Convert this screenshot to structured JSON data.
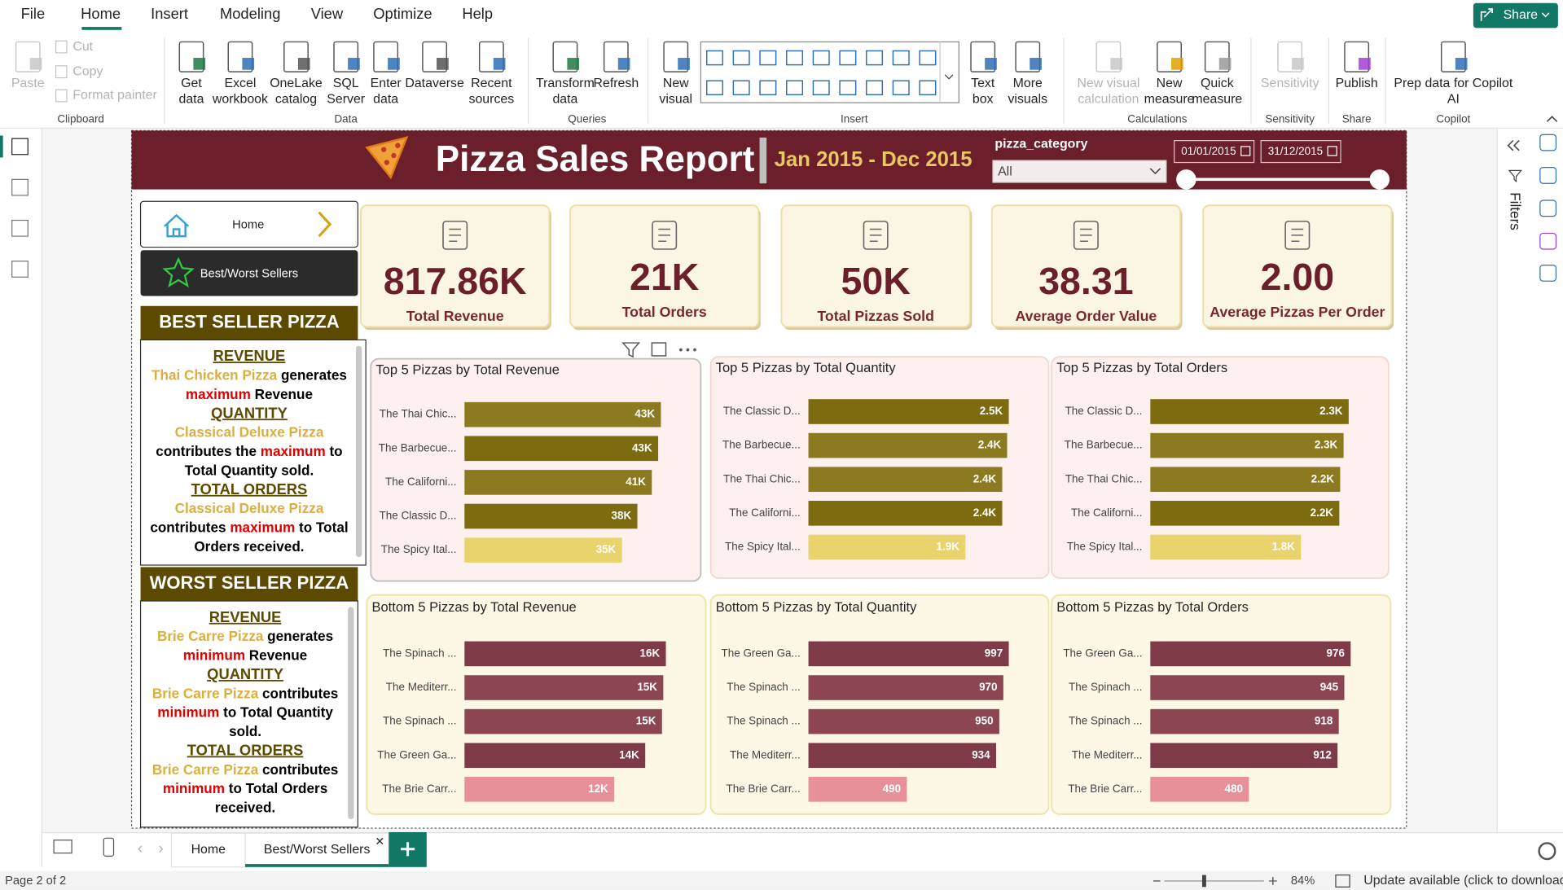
{
  "menu": {
    "tabs": [
      "File",
      "Home",
      "Insert",
      "Modeling",
      "View",
      "Optimize",
      "Help"
    ]
  },
  "share": "Share",
  "ribbon": {
    "groups": [
      {
        "label": "Clipboard",
        "buttons": [
          {
            "lines": [
              "Paste"
            ],
            "enabled": false
          },
          {
            "lines": [
              "Cut"
            ],
            "enabled": false
          },
          {
            "lines": [
              "Copy"
            ],
            "enabled": false
          },
          {
            "lines": [
              "Format painter"
            ],
            "enabled": false
          }
        ]
      },
      {
        "label": "Data",
        "buttons": [
          {
            "lines": [
              "Get",
              "data"
            ]
          },
          {
            "lines": [
              "Excel",
              "workbook"
            ]
          },
          {
            "lines": [
              "OneLake",
              "catalog"
            ]
          },
          {
            "lines": [
              "SQL",
              "Server"
            ]
          },
          {
            "lines": [
              "Enter",
              "data"
            ]
          },
          {
            "lines": [
              "Dataverse"
            ]
          },
          {
            "lines": [
              "Recent",
              "sources"
            ]
          }
        ]
      },
      {
        "label": "Queries",
        "buttons": [
          {
            "lines": [
              "Transform",
              "data"
            ]
          },
          {
            "lines": [
              "Refresh"
            ]
          }
        ]
      },
      {
        "label": "Insert",
        "buttons": [
          {
            "lines": [
              "New",
              "visual"
            ]
          },
          {
            "lines": [
              "Text",
              "box"
            ]
          },
          {
            "lines": [
              "More",
              "visuals"
            ]
          }
        ]
      },
      {
        "label": "Calculations",
        "buttons": [
          {
            "lines": [
              "New visual",
              "calculation"
            ],
            "enabled": false
          },
          {
            "lines": [
              "New",
              "measure"
            ]
          },
          {
            "lines": [
              "Quick",
              "measure"
            ]
          }
        ]
      },
      {
        "label": "Sensitivity",
        "buttons": [
          {
            "lines": [
              "Sensitivity"
            ],
            "enabled": false
          }
        ]
      },
      {
        "label": "Share",
        "buttons": [
          {
            "lines": [
              "Publish"
            ]
          }
        ]
      },
      {
        "label": "Copilot",
        "buttons": [
          {
            "lines": [
              "Prep data for Copilot",
              "AI"
            ]
          }
        ]
      }
    ]
  },
  "filters_pane": "Filters",
  "report": {
    "title": "Pizza Sales Report",
    "period": "Jan 2015 - Dec 2015",
    "slicer": {
      "label": "pizza_category",
      "value": "All"
    },
    "dates": [
      "01/01/2015",
      "31/12/2015"
    ],
    "nav": [
      "Home",
      "Best/Worst Sellers"
    ],
    "best": {
      "title": "BEST SELLER PIZZA",
      "lines": [
        [
          {
            "text": "REVENUE",
            "color": "#5c4a00",
            "underline": true
          }
        ],
        [
          {
            "text": "Thai Chicken Pizza",
            "color": "#dcae3c"
          },
          {
            "text": " generates",
            "color": "#000000"
          }
        ],
        [
          {
            "text": "maximum",
            "color": "#e00000"
          },
          {
            "text": " Revenue",
            "color": "#000000"
          }
        ],
        [
          {
            "text": "QUANTITY",
            "color": "#5c4a00",
            "underline": true
          }
        ],
        [
          {
            "text": "Classical Deluxe Pizza",
            "color": "#dcae3c"
          }
        ],
        [
          {
            "text": "contributes the ",
            "color": "#000000"
          },
          {
            "text": "maximum",
            "color": "#e00000"
          },
          {
            "text": " to",
            "color": "#000000"
          }
        ],
        [
          {
            "text": "Total Quantity sold.",
            "color": "#000000"
          }
        ],
        [
          {
            "text": "TOTAL ORDERS",
            "color": "#5c4a00",
            "underline": true
          }
        ],
        [
          {
            "text": "Classical Deluxe Pizza",
            "color": "#dcae3c"
          }
        ],
        [
          {
            "text": "contributes ",
            "color": "#000000"
          },
          {
            "text": "maximum",
            "color": "#e00000"
          },
          {
            "text": " to Total",
            "color": "#000000"
          }
        ],
        [
          {
            "text": "Orders received.",
            "color": "#000000"
          }
        ]
      ]
    },
    "worst": {
      "title": "WORST SELLER PIZZA",
      "lines": [
        [
          {
            "text": "REVENUE",
            "color": "#5c4a00",
            "underline": true
          }
        ],
        [
          {
            "text": "Brie Carre Pizza",
            "color": "#dcae3c"
          },
          {
            "text": " generates",
            "color": "#000000"
          }
        ],
        [
          {
            "text": "minimum",
            "color": "#e00000"
          },
          {
            "text": " Revenue",
            "color": "#000000"
          }
        ],
        [
          {
            "text": "QUANTITY",
            "color": "#5c4a00",
            "underline": true
          }
        ],
        [
          {
            "text": "Brie Carre Pizza",
            "color": "#dcae3c"
          },
          {
            "text": " contributes",
            "color": "#000000"
          }
        ],
        [
          {
            "text": "minimum",
            "color": "#e00000"
          },
          {
            "text": " to Total Quantity",
            "color": "#000000"
          }
        ],
        [
          {
            "text": "sold.",
            "color": "#000000"
          }
        ],
        [
          {
            "text": "TOTAL ORDERS",
            "color": "#5c4a00",
            "underline": true
          }
        ],
        [
          {
            "text": "Brie Carre Pizza",
            "color": "#dcae3c"
          },
          {
            "text": " contributes",
            "color": "#000000"
          }
        ],
        [
          {
            "text": "minimum",
            "color": "#e00000"
          },
          {
            "text": " to Total Orders",
            "color": "#000000"
          }
        ],
        [
          {
            "text": "received.",
            "color": "#000000"
          }
        ]
      ]
    },
    "kpis": [
      {
        "value": "817.86K",
        "label": "Total Revenue"
      },
      {
        "value": "21K",
        "label": "Total Orders"
      },
      {
        "value": "50K",
        "label": "Total Pizzas Sold"
      },
      {
        "value": "38.31",
        "label": "Average Order Value"
      },
      {
        "value": "2.00",
        "label": "Average Pizzas Per Order"
      }
    ]
  },
  "chart_data": [
    {
      "type": "bar",
      "orientation": "horizontal",
      "title": "Top 5 Pizzas by Total Revenue",
      "categories": [
        "The Thai Chic...",
        "The Barbecue...",
        "The Californi...",
        "The Classic D...",
        "The Spicy Ital..."
      ],
      "values": [
        43400,
        42800,
        41400,
        38200,
        34800
      ],
      "value_labels": [
        "43K",
        "43K",
        "41K",
        "38K",
        "35K"
      ],
      "colors": [
        "#8b7a1f",
        "#7d6b0f",
        "#8b7a1f",
        "#7d6b0f",
        "#e8d36c"
      ]
    },
    {
      "type": "bar",
      "orientation": "horizontal",
      "title": "Top 5 Pizzas by Total Quantity",
      "categories": [
        "The Classic D...",
        "The Barbecue...",
        "The Thai Chic...",
        "The Californi...",
        "The Spicy Ital..."
      ],
      "values": [
        2450,
        2430,
        2370,
        2370,
        1920
      ],
      "value_labels": [
        "2.5K",
        "2.4K",
        "2.4K",
        "2.4K",
        "1.9K"
      ],
      "colors": [
        "#7d6b0f",
        "#8b7a1f",
        "#8b7a1f",
        "#7d6b0f",
        "#e8d36c"
      ]
    },
    {
      "type": "bar",
      "orientation": "horizontal",
      "title": "Top 5 Pizzas by Total Orders",
      "categories": [
        "The Classic D...",
        "The Barbecue...",
        "The Thai Chic...",
        "The Californi...",
        "The Spicy Ital..."
      ],
      "values": [
        2330,
        2270,
        2230,
        2220,
        1770
      ],
      "value_labels": [
        "2.3K",
        "2.3K",
        "2.2K",
        "2.2K",
        "1.8K"
      ],
      "colors": [
        "#7d6b0f",
        "#8b7a1f",
        "#8b7a1f",
        "#7d6b0f",
        "#e8d36c"
      ]
    },
    {
      "type": "bar",
      "orientation": "horizontal",
      "title": "Bottom 5 Pizzas by Total Revenue",
      "categories": [
        "The Spinach ...",
        "The Mediterr...",
        "The Spinach ...",
        "The Green Ga...",
        "The Brie Carr..."
      ],
      "values": [
        15600,
        15400,
        15300,
        14000,
        11600
      ],
      "value_labels": [
        "16K",
        "15K",
        "15K",
        "14K",
        "12K"
      ],
      "colors": [
        "#7f3a47",
        "#8c4652",
        "#8c4652",
        "#7f3a47",
        "#e8909a"
      ]
    },
    {
      "type": "bar",
      "orientation": "horizontal",
      "title": "Bottom 5 Pizzas by Total Quantity",
      "categories": [
        "The Green Ga...",
        "The Spinach ...",
        "The Spinach ...",
        "The Mediterr...",
        "The Brie Carr..."
      ],
      "values": [
        997,
        970,
        950,
        934,
        490
      ],
      "value_labels": [
        "997",
        "970",
        "950",
        "934",
        "490"
      ],
      "colors": [
        "#7f3a47",
        "#8c4652",
        "#8c4652",
        "#7f3a47",
        "#e8909a"
      ]
    },
    {
      "type": "bar",
      "orientation": "horizontal",
      "title": "Bottom 5 Pizzas by Total Orders",
      "categories": [
        "The Green Ga...",
        "The Spinach ...",
        "The Spinach ...",
        "The Mediterr...",
        "The Brie Carr..."
      ],
      "values": [
        976,
        945,
        918,
        912,
        480
      ],
      "value_labels": [
        "976",
        "945",
        "918",
        "912",
        "480"
      ],
      "colors": [
        "#7f3a47",
        "#8c4652",
        "#8c4652",
        "#7f3a47",
        "#e8909a"
      ]
    }
  ],
  "page_tabs": [
    "Home",
    "Best/Worst Sellers"
  ],
  "status": {
    "page": "Page 2 of 2",
    "zoom": "84%",
    "update": "Update available (click to download)"
  }
}
